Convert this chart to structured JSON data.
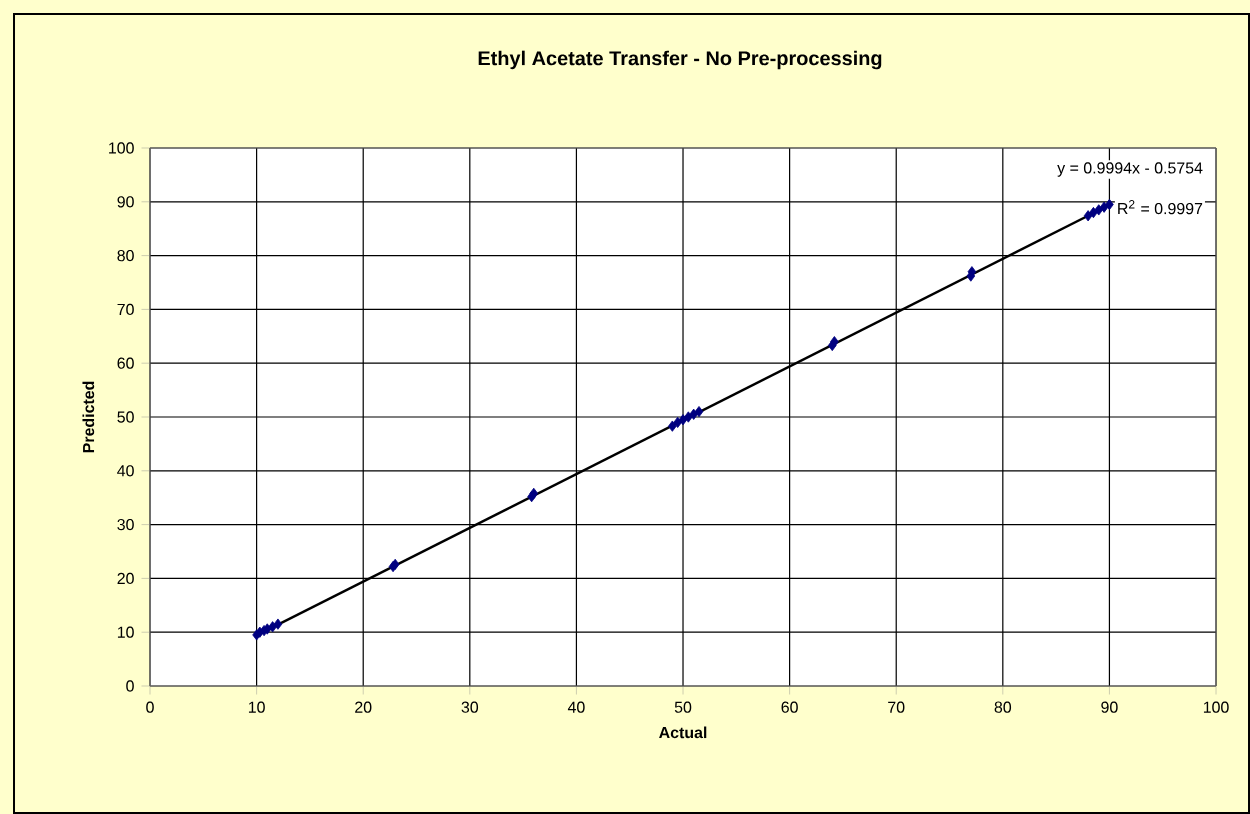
{
  "chart_data": {
    "type": "scatter",
    "title": "Ethyl Acetate Transfer - No Pre-processing",
    "xlabel": "Actual",
    "ylabel": "Predicted",
    "xlim": [
      0,
      100
    ],
    "xticks": [
      0,
      10,
      20,
      30,
      40,
      50,
      60,
      70,
      80,
      90,
      100
    ],
    "ylim": [
      0,
      100
    ],
    "yticks": [
      0,
      10,
      20,
      30,
      40,
      50,
      60,
      70,
      80,
      90,
      100
    ],
    "grid": true,
    "marker": "diamond",
    "annotations": [
      "y = 0.9994x - 0.5754",
      "R$^{2}$ = 0.9997"
    ],
    "series": [
      {
        "color": "#000080",
        "x": [
          10,
          10.3,
          10.7,
          11,
          11.5,
          12,
          22.8,
          23,
          35.8,
          36,
          49,
          49.5,
          50,
          50.5,
          51,
          51.5,
          64,
          64.2,
          77,
          77.1,
          88,
          88.5,
          89,
          89.5,
          90
        ],
        "values": [
          9.5,
          10,
          10.3,
          10.6,
          11,
          11.5,
          22.2,
          22.6,
          35.2,
          35.8,
          48.3,
          49,
          49.5,
          50,
          50.5,
          51,
          63.3,
          64,
          76.2,
          77,
          87.4,
          88,
          88.5,
          89,
          89.5
        ]
      },
      {
        "type": "line",
        "color": "#000000",
        "marker": "none",
        "x": [
          10,
          90
        ],
        "values": [
          9.4,
          89.4
        ]
      }
    ]
  }
}
